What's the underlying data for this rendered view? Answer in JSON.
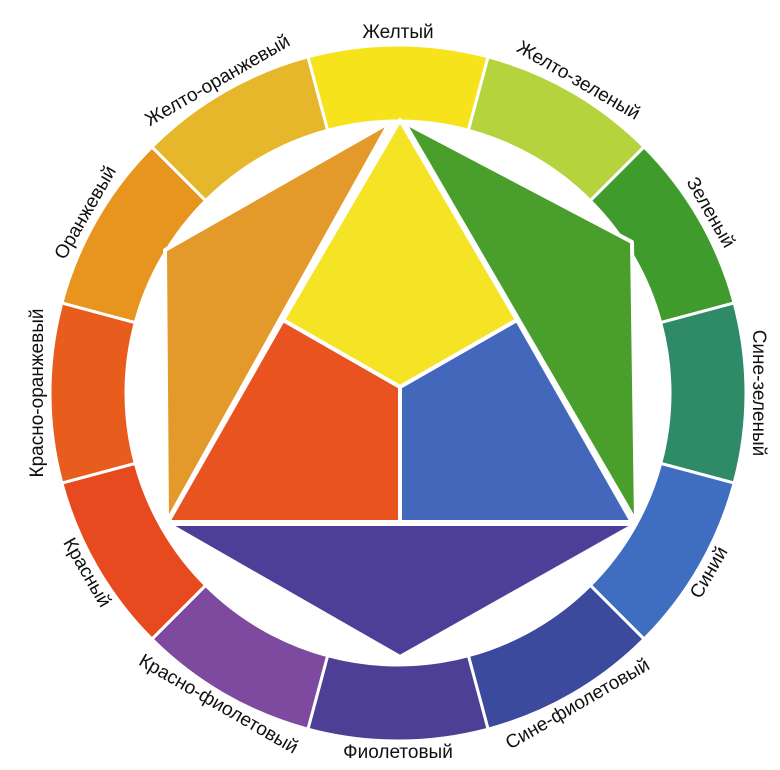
{
  "segments": [
    {
      "label": "Желтый",
      "color": "#f6e31c"
    },
    {
      "label": "Желто-зеленый",
      "color": "#b4d33d"
    },
    {
      "label": "Зеленый",
      "color": "#3f9b2b"
    },
    {
      "label": "Сине-зеленый",
      "color": "#2f8a68"
    },
    {
      "label": "Синий",
      "color": "#3f6dc0"
    },
    {
      "label": "Сине-фиолетовый",
      "color": "#3b4a9d"
    },
    {
      "label": "Фиолетовый",
      "color": "#4e3f96"
    },
    {
      "label": "Красно-фиолетовый",
      "color": "#7d4a9f"
    },
    {
      "label": "Красный",
      "color": "#e84a1f"
    },
    {
      "label": "Красно-оранжевый",
      "color": "#e85d1d"
    },
    {
      "label": "Оранжевый",
      "color": "#e8951f"
    },
    {
      "label": "Желто-оранжевый",
      "color": "#e6b62b"
    }
  ]
}
